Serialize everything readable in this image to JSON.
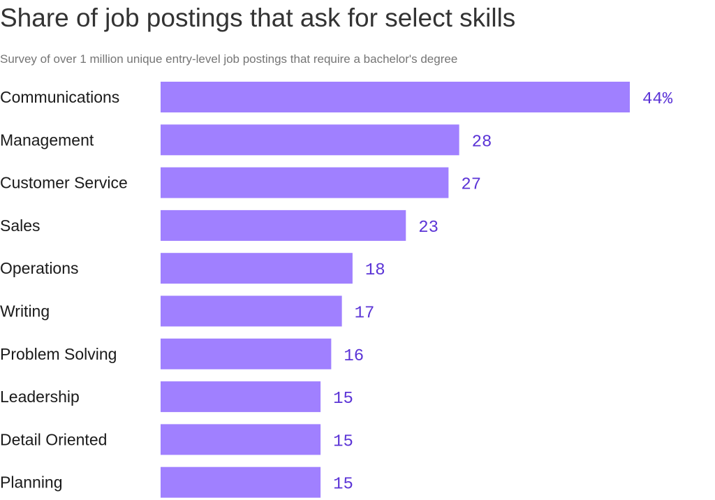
{
  "title": "Share of job postings that ask for select skills",
  "subtitle": "Survey of over 1 million unique entry-level job postings that require a bachelor's degree",
  "colors": {
    "bar": "#a080ff",
    "value_label": "#5b34d6",
    "title": "#333333",
    "subtitle": "#757575",
    "category_label": "#1a1a1a"
  },
  "chart_data": {
    "type": "bar",
    "orientation": "horizontal",
    "title": "Share of job postings that ask for select skills",
    "subtitle": "Survey of over 1 million unique entry-level job postings that require a bachelor's degree",
    "categories": [
      "Communications",
      "Management",
      "Customer Service",
      "Sales",
      "Operations",
      "Writing",
      "Problem Solving",
      "Leadership",
      "Detail Oriented",
      "Planning"
    ],
    "values": [
      44,
      28,
      27,
      23,
      18,
      17,
      16,
      15,
      15,
      15
    ],
    "value_labels": [
      "44%",
      "28",
      "27",
      "23",
      "18",
      "17",
      "16",
      "15",
      "15",
      "15"
    ],
    "xlim": [
      0,
      44
    ],
    "grid": false,
    "legend": "none"
  }
}
